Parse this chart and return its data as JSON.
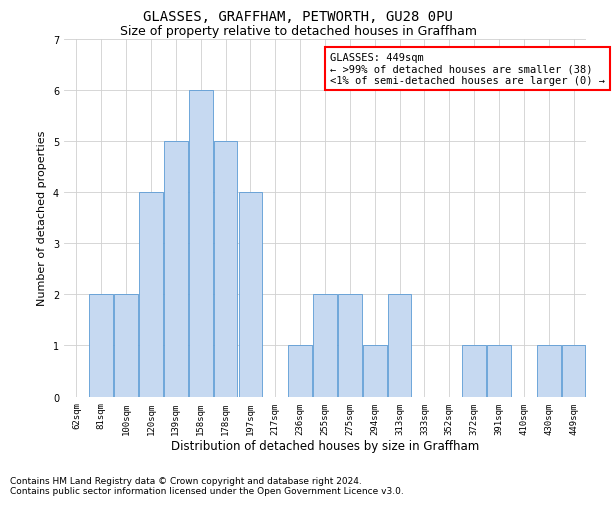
{
  "title": "GLASSES, GRAFFHAM, PETWORTH, GU28 0PU",
  "subtitle": "Size of property relative to detached houses in Graffham",
  "xlabel": "Distribution of detached houses by size in Graffham",
  "ylabel": "Number of detached properties",
  "categories": [
    "62sqm",
    "81sqm",
    "100sqm",
    "120sqm",
    "139sqm",
    "158sqm",
    "178sqm",
    "197sqm",
    "217sqm",
    "236sqm",
    "255sqm",
    "275sqm",
    "294sqm",
    "313sqm",
    "333sqm",
    "352sqm",
    "372sqm",
    "391sqm",
    "410sqm",
    "430sqm",
    "449sqm"
  ],
  "values": [
    0,
    2,
    2,
    4,
    5,
    6,
    5,
    4,
    0,
    1,
    2,
    2,
    1,
    2,
    0,
    0,
    1,
    1,
    0,
    1,
    1
  ],
  "bar_color": "#c6d9f1",
  "bar_edge_color": "#5b9bd5",
  "annotation_text": "GLASSES: 449sqm\n← >99% of detached houses are smaller (38)\n<1% of semi-detached houses are larger (0) →",
  "annotation_box_color": "#ffffff",
  "annotation_box_edge_color": "#ff0000",
  "ylim": [
    0,
    7
  ],
  "yticks": [
    0,
    1,
    2,
    3,
    4,
    5,
    6,
    7
  ],
  "background_color": "#ffffff",
  "grid_color": "#d0d0d0",
  "footer_line1": "Contains HM Land Registry data © Crown copyright and database right 2024.",
  "footer_line2": "Contains public sector information licensed under the Open Government Licence v3.0.",
  "title_fontsize": 10,
  "subtitle_fontsize": 9,
  "xlabel_fontsize": 8.5,
  "ylabel_fontsize": 8,
  "tick_fontsize": 6.5,
  "annotation_fontsize": 7.5,
  "footer_fontsize": 6.5
}
